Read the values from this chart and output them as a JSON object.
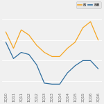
{
  "x_labels": [
    "3Q10",
    "1Q11",
    "3Q11",
    "1Q12",
    "3Q12",
    "1Q13",
    "3Q13",
    "1Q14",
    "3Q14",
    "1Q15",
    "3Q15",
    "1Q16",
    "3Q16"
  ],
  "B_values": [
    68,
    52,
    70,
    65,
    55,
    48,
    44,
    44,
    52,
    58,
    72,
    78,
    60
  ],
  "BB_values": [
    58,
    42,
    48,
    46,
    36,
    18,
    17,
    17,
    28,
    35,
    40,
    40,
    32
  ],
  "B_color": "#f5a623",
  "BB_color": "#2e6d9e",
  "bg_color": "#f0f0f0",
  "legend_bg": "#e4e4e4",
  "ylim": [
    10,
    90
  ],
  "tick_fontsize": 3.8,
  "legend_fontsize": 4.5
}
